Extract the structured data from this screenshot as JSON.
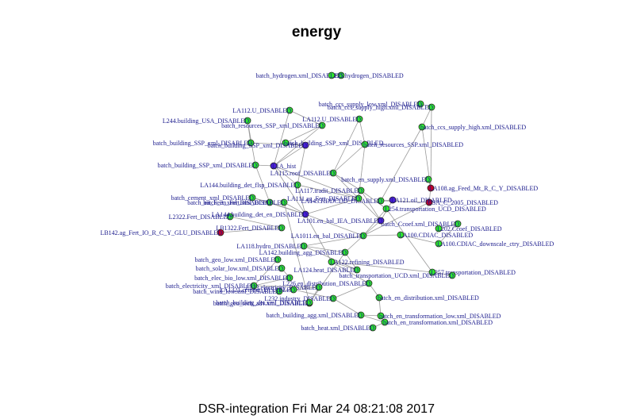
{
  "title": "energy",
  "footer": "DSR-integration Fri Mar 24 08:21:08 2017",
  "colors": {
    "ok": "#2ee62e",
    "disabled_red": "#c0002a",
    "hist": "#4b1fd6",
    "edge": "#999999",
    "label": "#1a1a8c"
  },
  "nodes": [
    {
      "label": "batch_hydrogen.xml_DISABLED",
      "status": "ok"
    },
    {
      "label": "L225.hydrogen_DISABLED",
      "status": "ok"
    },
    {
      "label": "LA112.U_DISABLED",
      "status": "ok"
    },
    {
      "label": "L244.building_USA_DISABLED",
      "status": "ok"
    },
    {
      "label": "batch_resources_SSP_xml_DISABLED",
      "status": "ok"
    },
    {
      "label": "LA112.U_DISABLED",
      "status": "ok"
    },
    {
      "label": "batch_building_SSP_xml_DISABLED",
      "status": "ok"
    },
    {
      "label": "batch_building_SSP_xml_DISABLED",
      "status": "ok"
    },
    {
      "label": "batch_building_SSP_xml_DISABLED",
      "status": "hist"
    },
    {
      "label": "batch_building_SSP_xml_DISABLED",
      "status": "ok"
    },
    {
      "label": "batch_resources_SSP.xml_DISABLED",
      "status": "ok"
    },
    {
      "label": "batch_ccs_supply_low.xml_DISABLED",
      "status": "ok"
    },
    {
      "label": "batch_ccs_supply_high.xml_DISABLED",
      "status": "ok"
    },
    {
      "label": "batch_ccs_supply_high.xml_DISABLED",
      "status": "ok"
    },
    {
      "label": "batch_en_supply.xml_DISABLED",
      "status": "ok"
    },
    {
      "label": "LA108.ag_Feed_Mt_R_C_Y_DISABLED",
      "status": "red"
    },
    {
      "label": "L1A_hist",
      "status": "hist"
    },
    {
      "label": "LA115.roof_DISABLED",
      "status": "ok"
    },
    {
      "label": "LA144.building_det_flsp_DISABLED",
      "status": "ok"
    },
    {
      "label": "LA117.tradit_DISABLED",
      "status": "ok"
    },
    {
      "label": "batch_cement_xml_DISABLED",
      "status": "ok"
    },
    {
      "label": "batch_en_Fert_xml_DISABLED",
      "status": "ok"
    },
    {
      "label": "L254.transportation_UCD_DISABLED",
      "status": "ok"
    },
    {
      "label": "L2322.Fert_DISABLED",
      "status": "ok"
    },
    {
      "label": "LA144.building_det_en_DISABLED",
      "status": "hist"
    },
    {
      "label": "LB1322.Fert_DISABLED",
      "status": "ok"
    },
    {
      "label": "LB142.ag_Fert_IO_R_C_Y_GLU_DISABLED",
      "status": "red"
    },
    {
      "label": "USA_C_2005_DISABLED",
      "status": "red"
    },
    {
      "label": "LA1011.en_bal_DISABLED",
      "status": "ok"
    },
    {
      "label": "LA100.CDIAC_DISABLED",
      "status": "ok"
    },
    {
      "label": "LA100.CDIAC_downscale_ctry_DISABLED",
      "status": "ok"
    },
    {
      "label": "batch_Ccoef.xml_DISABLED",
      "status": "ok"
    },
    {
      "label": "L202.Ccoef_DISABLED",
      "status": "ok"
    },
    {
      "label": "LA118.hydro_DISABLED",
      "status": "ok"
    },
    {
      "label": "LA142.building_agg_DISABLED",
      "status": "ok"
    },
    {
      "label": "batch_geo_low.xml_DISABLED",
      "status": "ok"
    },
    {
      "label": "batch_solar_low.xml_DISABLED",
      "status": "ok"
    },
    {
      "label": "LA124.heat_DISABLED",
      "status": "ok"
    },
    {
      "label": "batch_elec_bio_low.xml_DISABLED",
      "status": "ok"
    },
    {
      "label": "LA122.refining_DISABLED",
      "status": "ok"
    },
    {
      "label": "batch_electricity_xml_DISABLED",
      "status": "ok"
    },
    {
      "label": "L226.en_distribution_DISABLED",
      "status": "ok"
    },
    {
      "label": "L257.transportation_DISABLED",
      "status": "ok"
    },
    {
      "label": "batch_transportation_UCD.xml_DISABLED",
      "status": "ok"
    },
    {
      "label": "batch_wind_low.xml_DISABLED",
      "status": "ok"
    },
    {
      "label": "batch_en_distribution.xml_DISABLED",
      "status": "ok"
    },
    {
      "label": "batch_en_transformation_low.xml_DISABLED",
      "status": "ok"
    },
    {
      "label": "batch_building_agg.xml_DISABLED",
      "status": "ok"
    },
    {
      "label": "batch_en_transformation.xml_DISABLED",
      "status": "ok"
    },
    {
      "label": "batch_heat.xml_DISABLED",
      "status": "ok"
    },
    {
      "label": "batch_geo_tech_adv.xml_DISABLED",
      "status": "ok"
    },
    {
      "label": "L223.electricity_DISABLED",
      "status": "ok"
    },
    {
      "label": "LA1321.cement_DISABLED",
      "status": "ok"
    },
    {
      "label": "L232.industry_DISABLED",
      "status": "ok"
    },
    {
      "label": "LA143.HDDCDD_DISABLED",
      "status": "ok"
    },
    {
      "label": "LA121.oil_DISABLED",
      "status": "hist"
    },
    {
      "label": "LA111.ag_Fert_DISABLED",
      "status": "ok"
    },
    {
      "label": "batch_en_Fert.xml_DISABLED",
      "status": "ok"
    },
    {
      "label": "batch_building_det.xml_DISABLED",
      "status": "ok"
    },
    {
      "label": "LA101.en_bal_IEA_DISABLED",
      "status": "hist"
    }
  ]
}
